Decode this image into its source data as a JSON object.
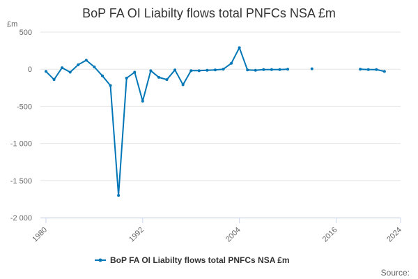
{
  "chart_data": {
    "type": "line",
    "title": "BoP FA OI Liabilty flows total PNFCs NSA £m",
    "ylabel": "£m",
    "ylim": [
      -2000,
      500
    ],
    "yticks": [
      500,
      0,
      -500,
      -1000,
      -1500,
      -2000
    ],
    "ytick_labels": [
      "500",
      "0",
      "-500",
      "-1 000",
      "-1 500",
      "-2 000"
    ],
    "xlim": [
      1980,
      2024
    ],
    "xticks": [
      1980,
      1992,
      2004,
      2016,
      2024
    ],
    "xtick_labels": [
      "1980",
      "1992",
      "2004",
      "2016",
      "2024"
    ],
    "grid": true,
    "legend_position": "bottom",
    "series": [
      {
        "name": "BoP FA OI Liabilty flows total PNFCs NSA £m",
        "color": "#0076b6",
        "x": [
          1980,
          1981,
          1982,
          1983,
          1984,
          1985,
          1986,
          1987,
          1988,
          1989,
          1990,
          1991,
          1992,
          1993,
          1994,
          1995,
          1996,
          1997,
          1998,
          1999,
          2000,
          2001,
          2002,
          2003,
          2004,
          2005,
          2006,
          2007,
          2008,
          2009,
          2010,
          2011,
          2012,
          2013,
          2014,
          2015,
          2016,
          2017,
          2018,
          2019,
          2020,
          2021,
          2022
        ],
        "y": [
          -30,
          -140,
          20,
          -40,
          60,
          120,
          30,
          -90,
          -220,
          -1700,
          -120,
          -40,
          -430,
          -20,
          -110,
          -140,
          -10,
          -210,
          -20,
          -20,
          -15,
          -10,
          0,
          80,
          290,
          -10,
          -15,
          -5,
          -5,
          -5,
          0,
          null,
          null,
          5,
          null,
          null,
          null,
          null,
          null,
          0,
          -5,
          -5,
          -30
        ]
      }
    ]
  },
  "legend": {
    "label": "BoP FA OI Liabilty flows total PNFCs NSA £m"
  },
  "credits": {
    "text": "Source:"
  }
}
